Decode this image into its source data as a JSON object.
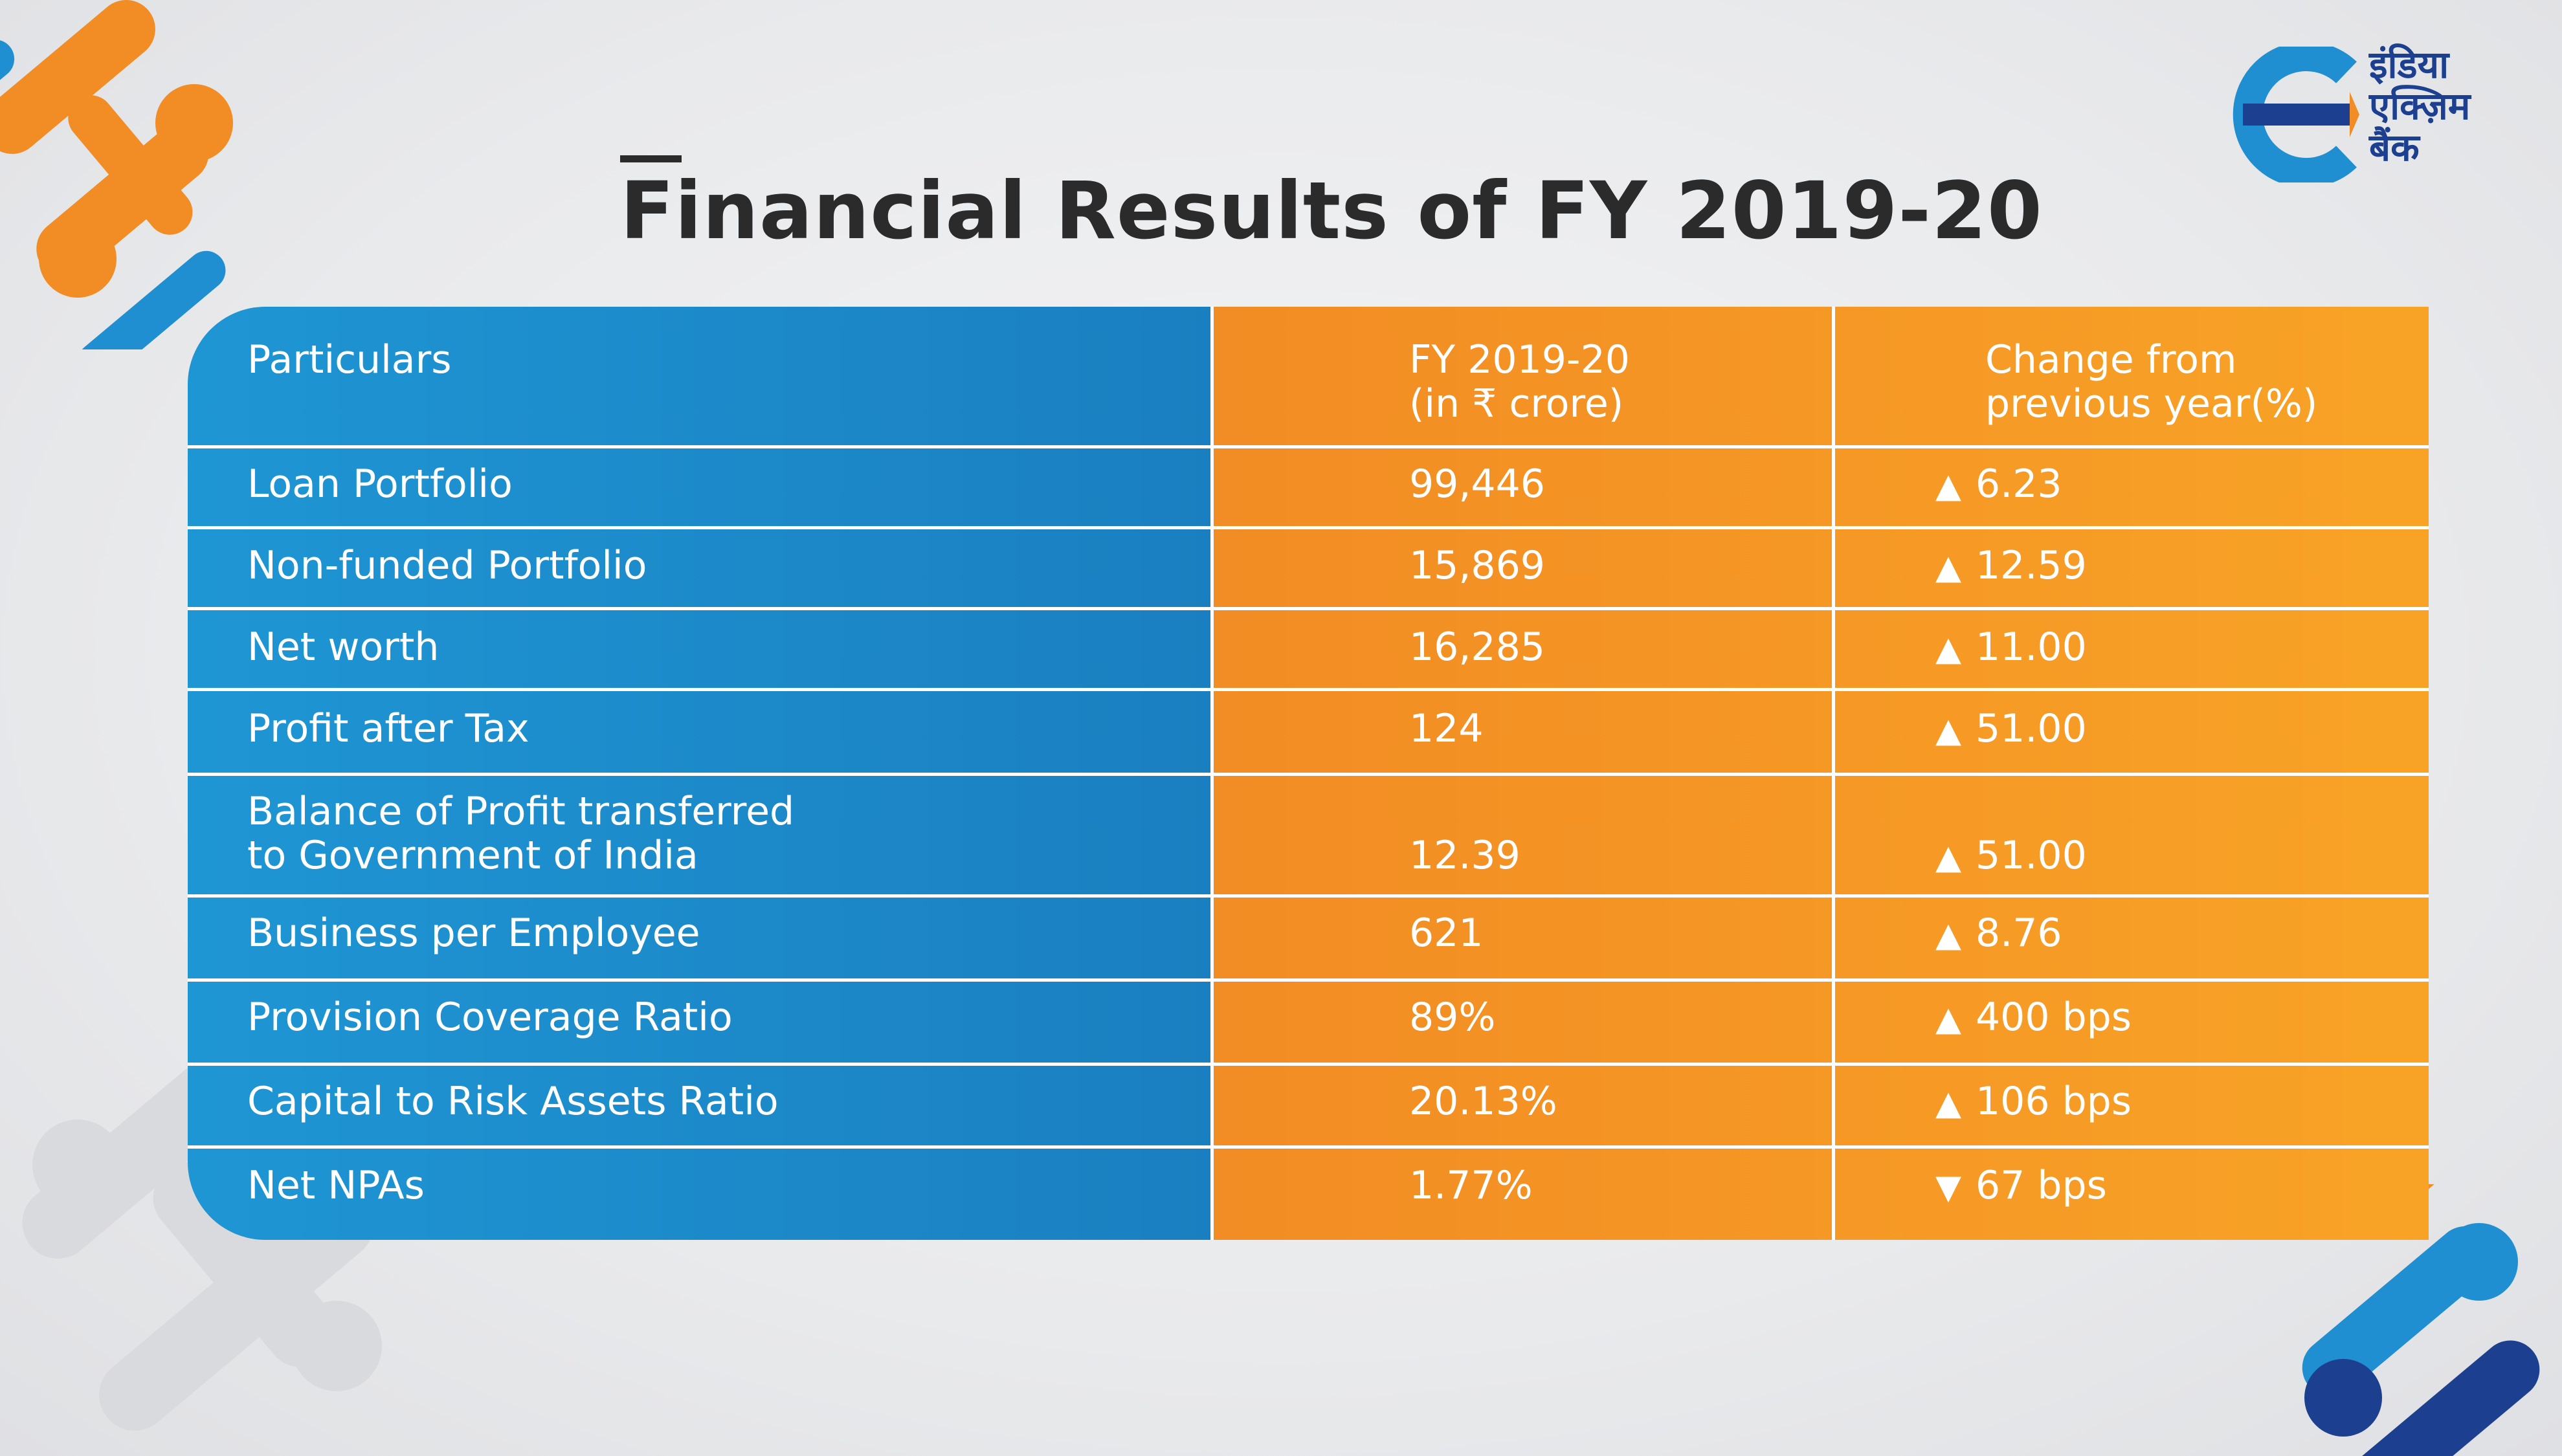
{
  "title": "Financial Results of FY 2019-20",
  "logo": {
    "text": "इंडिया\nएक्ज़िम\nबैंक",
    "primary_color": "#1c3f8f",
    "accent_color": "#f28c24"
  },
  "colors": {
    "blue": "#1f96d4",
    "orange": "#f28c24",
    "title": "#2b2b2b"
  },
  "table": {
    "headers": [
      "Particulars",
      "FY 2019-20\n(in ₹ crore)",
      "Change from\nprevious year(%)"
    ],
    "rows": [
      {
        "particular": "Loan Portfolio",
        "value": "99,446",
        "direction": "▲",
        "change": "6.23"
      },
      {
        "particular": "Non-funded Portfolio",
        "value": "15,869",
        "direction": "▲",
        "change": "12.59"
      },
      {
        "particular": "Net worth",
        "value": "16,285",
        "direction": "▲",
        "change": "11.00"
      },
      {
        "particular": "Profit after Tax",
        "value": "124",
        "direction": "▲",
        "change": "51.00"
      },
      {
        "particular": "Balance of Profit transferred\nto Government of India",
        "value": "12.39",
        "direction": "▲",
        "change": "51.00"
      },
      {
        "particular": "Business per Employee",
        "value": "621",
        "direction": "▲",
        "change": "8.76"
      },
      {
        "particular": "Provision Coverage Ratio",
        "value": "89%",
        "direction": "▲",
        "change": "400 bps"
      },
      {
        "particular": "Capital to Risk Assets Ratio",
        "value": "20.13%",
        "direction": "▲",
        "change": "106 bps"
      },
      {
        "particular": "Net NPAs",
        "value": "1.77%",
        "direction": "▼",
        "change": "67 bps"
      }
    ]
  }
}
